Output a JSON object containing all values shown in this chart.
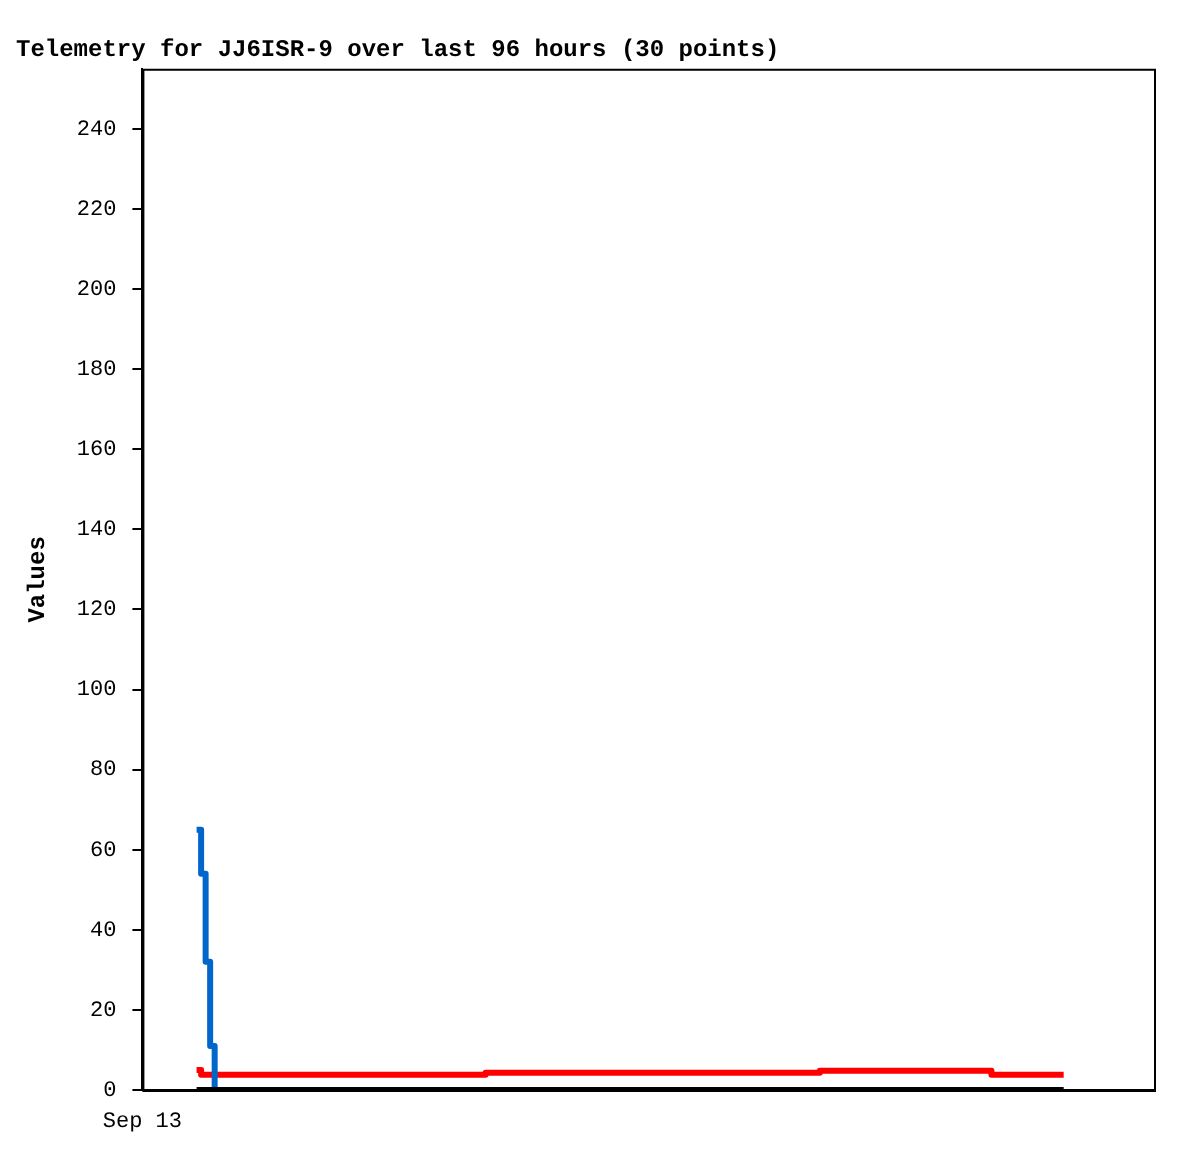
{
  "chart_data": {
    "type": "step",
    "title": "Telemetry for JJ6ISR-9 over last 96 hours (30 points)",
    "ylabel": "Values",
    "annotations": [
      "Sep 13"
    ],
    "categories": [
      null,
      null,
      null,
      null,
      null,
      null,
      null,
      null,
      null,
      null,
      null,
      null,
      null,
      null,
      null,
      null,
      null,
      null,
      null,
      null,
      null,
      null,
      null,
      null,
      null,
      null,
      null,
      null,
      null,
      null,
      null,
      null,
      null,
      null,
      null,
      null,
      null,
      null,
      null,
      null,
      null,
      null,
      null,
      null,
      null,
      null,
      null,
      null,
      null,
      null,
      null,
      null,
      null,
      null,
      null,
      null,
      null,
      null,
      null,
      null,
      null,
      null,
      null,
      null,
      null,
      null,
      null,
      null,
      null,
      null,
      null,
      null,
      null,
      null,
      null,
      null,
      null,
      null,
      null,
      null,
      null,
      null,
      null,
      null,
      null,
      null,
      null,
      null,
      null,
      null,
      null,
      null,
      null,
      null,
      null,
      null,
      null,
      null,
      null,
      null,
      null,
      null,
      null,
      null,
      null,
      null,
      null,
      null,
      null,
      null,
      null,
      null,
      null,
      null,
      null,
      null,
      null,
      null,
      null,
      null,
      null,
      null,
      null,
      null,
      null,
      null,
      null,
      null,
      null,
      null,
      null,
      null,
      null,
      null,
      null,
      null,
      null,
      null,
      null,
      null,
      null,
      null,
      null,
      null,
      null,
      null,
      null,
      null,
      null,
      null,
      null,
      null,
      null,
      null,
      null,
      null,
      null,
      null,
      null,
      null,
      null,
      null,
      null,
      null,
      null,
      null,
      null,
      null,
      null,
      null,
      null,
      null,
      null,
      null,
      null,
      null,
      null,
      null,
      null,
      null,
      null,
      null,
      null,
      null,
      null,
      null,
      null,
      null,
      null,
      null,
      null,
      null,
      null
    ],
    "ylim": [
      0,
      255
    ],
    "yticks": [
      0,
      20,
      40,
      60,
      80,
      100,
      120,
      140,
      160,
      180,
      200,
      220,
      240
    ],
    "grid": false,
    "legend": false,
    "marker": "none",
    "line_style": "solid",
    "series": [
      {
        "color": "#000000",
        "values": [
          0,
          null,
          null,
          null,
          null,
          null,
          null,
          null,
          null,
          null,
          null,
          null,
          null,
          null,
          null,
          null,
          null,
          null,
          null,
          null,
          null,
          null,
          null,
          null,
          null,
          null,
          null,
          null,
          null,
          null,
          null,
          null,
          null,
          null,
          null,
          null,
          null,
          null,
          null,
          null,
          null,
          null,
          null,
          null,
          null,
          null,
          null,
          null,
          null,
          null,
          null,
          null,
          null,
          null,
          null,
          null,
          null,
          null,
          null,
          null,
          null,
          null,
          null,
          null,
          null,
          null,
          null,
          null,
          null,
          null,
          null,
          null,
          null,
          null,
          null,
          null,
          null,
          null,
          null,
          null,
          null,
          null,
          null,
          null,
          null,
          null,
          null,
          null,
          null,
          null,
          null,
          null,
          null,
          null,
          null,
          null,
          null,
          null,
          null,
          null,
          null,
          null,
          null,
          null,
          null,
          null,
          null,
          null,
          null,
          null,
          null,
          null,
          null,
          null,
          null,
          null,
          null,
          null,
          null,
          null,
          null,
          null,
          null,
          null,
          null,
          null,
          null,
          null,
          null,
          null,
          null,
          null,
          null,
          null,
          null,
          null,
          null,
          null,
          null,
          null,
          null,
          null,
          null,
          null,
          null,
          null,
          null,
          null,
          null,
          null,
          null,
          null,
          null,
          null,
          null,
          null,
          null,
          null,
          null,
          null,
          null,
          null,
          null,
          null,
          null,
          null,
          null,
          null,
          null,
          null,
          null,
          null,
          null,
          null,
          null,
          null,
          null,
          null,
          null,
          null,
          null,
          null,
          null,
          null,
          null,
          null,
          null,
          null,
          null,
          null,
          null,
          null,
          0
        ]
      },
      {
        "color": "#0066cc",
        "values": [
          65,
          54,
          32,
          11,
          0,
          null,
          null,
          null,
          null,
          null,
          null,
          null,
          null,
          null,
          null,
          null,
          null,
          null,
          null,
          null,
          null,
          null,
          null,
          null,
          null,
          null,
          null,
          null,
          null,
          null,
          null,
          null,
          null,
          null,
          null,
          null,
          null,
          null,
          null,
          null,
          null,
          null,
          null,
          null,
          null,
          null,
          null,
          null,
          null,
          null,
          null,
          null,
          null,
          null,
          null,
          null,
          null,
          null,
          null,
          null,
          null,
          null,
          null,
          null,
          null,
          null,
          null,
          null,
          null,
          null,
          null,
          null,
          null,
          null,
          null,
          null,
          null,
          null,
          null,
          null,
          null,
          null,
          null,
          null,
          null,
          null,
          null,
          null,
          null,
          null,
          null,
          null,
          null,
          null,
          null,
          null,
          null,
          null,
          null,
          null,
          null,
          null,
          null,
          null,
          null,
          null,
          null,
          null,
          null,
          null,
          null,
          null,
          null,
          null,
          null,
          null,
          null,
          null,
          null,
          null,
          null,
          null,
          null,
          null,
          null,
          null,
          null,
          null,
          null,
          null,
          null,
          null,
          null,
          null,
          null,
          null,
          null,
          null,
          null,
          null,
          null,
          null,
          null,
          null,
          null,
          null,
          null,
          null,
          null,
          null,
          null,
          null,
          null,
          null,
          null,
          null,
          null,
          null,
          null,
          null,
          null,
          null,
          null,
          null,
          null,
          null,
          null,
          null,
          null,
          null,
          null,
          null,
          null,
          null,
          null,
          null,
          null,
          null,
          null,
          null,
          null,
          null,
          null,
          null,
          null,
          null,
          null,
          null,
          null,
          null,
          null,
          null,
          null
        ]
      },
      {
        "color": "#ff0000",
        "values": [
          5,
          3.8,
          null,
          null,
          null,
          null,
          null,
          null,
          null,
          null,
          null,
          null,
          null,
          null,
          null,
          null,
          null,
          null,
          null,
          null,
          null,
          null,
          null,
          null,
          null,
          null,
          null,
          null,
          null,
          null,
          null,
          null,
          null,
          null,
          null,
          null,
          null,
          null,
          null,
          null,
          null,
          null,
          null,
          null,
          null,
          null,
          null,
          null,
          null,
          null,
          null,
          null,
          null,
          null,
          null,
          null,
          null,
          null,
          null,
          null,
          null,
          null,
          null,
          null,
          4.3,
          null,
          null,
          null,
          null,
          null,
          null,
          null,
          null,
          null,
          null,
          null,
          null,
          null,
          null,
          null,
          null,
          null,
          null,
          null,
          null,
          null,
          null,
          null,
          null,
          null,
          null,
          null,
          null,
          null,
          null,
          null,
          null,
          null,
          null,
          null,
          null,
          null,
          null,
          null,
          null,
          null,
          null,
          null,
          null,
          null,
          null,
          null,
          null,
          null,
          null,
          null,
          null,
          null,
          null,
          null,
          null,
          null,
          null,
          null,
          null,
          null,
          null,
          null,
          null,
          null,
          null,
          null,
          null,
          null,
          null,
          null,
          null,
          null,
          4.8,
          null,
          null,
          null,
          null,
          null,
          null,
          null,
          null,
          null,
          null,
          null,
          null,
          null,
          null,
          null,
          null,
          null,
          null,
          null,
          null,
          null,
          null,
          null,
          null,
          null,
          null,
          null,
          null,
          null,
          null,
          null,
          null,
          null,
          null,
          null,
          null,
          null,
          3.8,
          null,
          null,
          null,
          null,
          null,
          null,
          null,
          null,
          null,
          null,
          null,
          null,
          null,
          null,
          null,
          3.8
        ]
      }
    ]
  }
}
